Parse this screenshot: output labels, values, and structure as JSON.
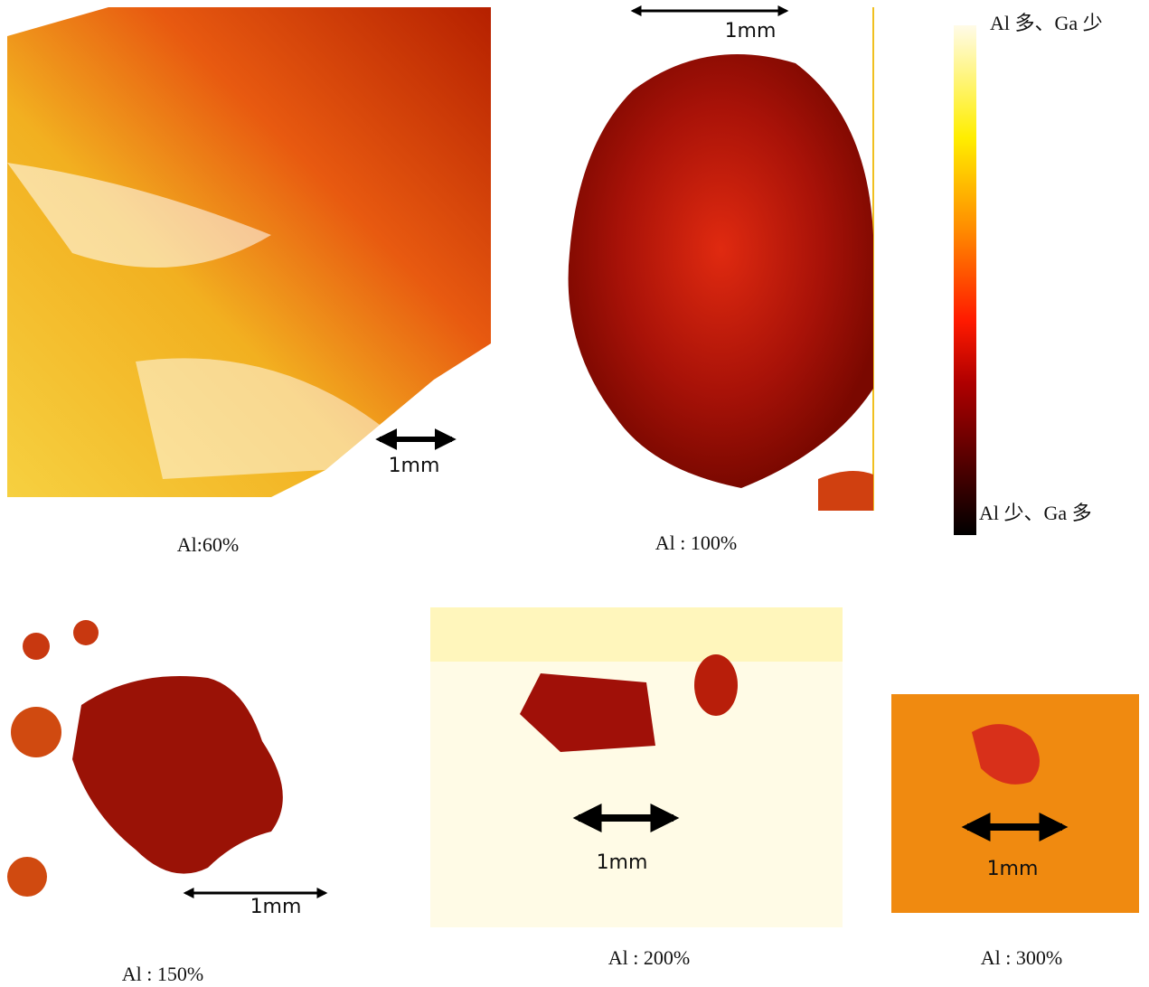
{
  "panels": [
    {
      "caption": "Al:60%",
      "scale_label": "1mm"
    },
    {
      "caption": "Al : 100%",
      "scale_label": "1mm"
    },
    {
      "caption": "Al : 150%",
      "scale_label": "1mm"
    },
    {
      "caption": "Al : 200%",
      "scale_label": "1mm"
    },
    {
      "caption": "Al : 300%",
      "scale_label": "1mm"
    }
  ],
  "colorbar": {
    "top_label": "Al 多、Ga 少",
    "bottom_label": "Al 少、Ga 多"
  }
}
